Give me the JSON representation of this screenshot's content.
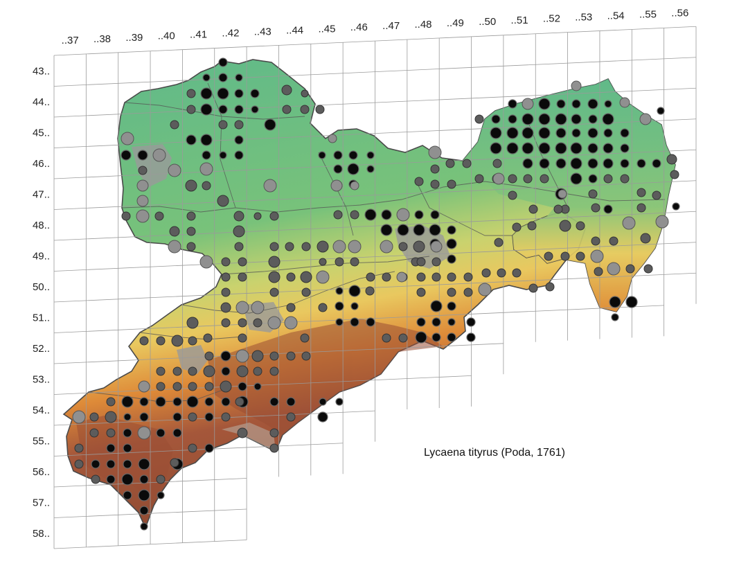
{
  "columns": [
    "..37",
    "..38",
    "..39",
    "..40",
    "..41",
    "..42",
    "..43",
    "..44",
    "..45",
    "..46",
    "..47",
    "..48",
    "..49",
    "..50",
    "..51",
    "..52",
    "..53",
    "..54",
    "..55",
    "..56"
  ],
  "rows": [
    "43..",
    "44..",
    "45..",
    "46..",
    "47..",
    "48..",
    "49..",
    "50..",
    "51..",
    "52..",
    "53..",
    "54..",
    "55..",
    "56..",
    "57..",
    "58.."
  ],
  "species_label": "Lycaena tityrus (Poda, 1761)",
  "colors": {
    "grid_line": "#9a9a9a",
    "border": "#4a4a4a",
    "lowland_green": "#69be82",
    "mid_yellow": "#e8cf6a",
    "orange": "#e0913c",
    "mountain_brown": "#a5573a",
    "urban_grey": "#9a9a9a",
    "marker_black": "#0a0a0a",
    "marker_dark_grey": "#5c5c5c",
    "marker_light_grey": "#909090"
  },
  "legend_markers": [
    "black-dot",
    "dark-grey-dot",
    "light-grey-dot"
  ]
}
